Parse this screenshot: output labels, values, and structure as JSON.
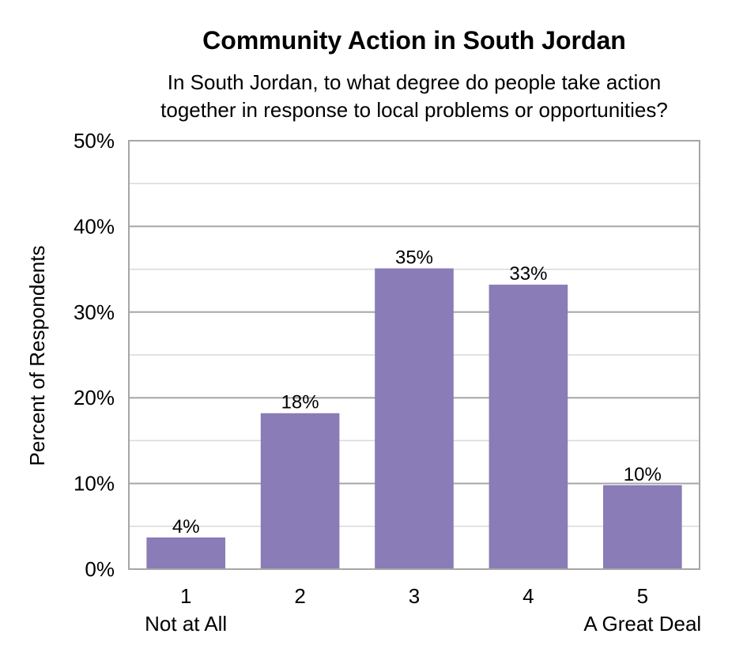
{
  "chart_data": {
    "type": "bar",
    "title": "Community Action in South Jordan",
    "subtitle_lines": [
      "In South Jordan, to what degree do people take action",
      "together in response to local problems or opportunities?"
    ],
    "ylabel": "Percent of Respondents",
    "xlabel": "",
    "categories": [
      "1",
      "2",
      "3",
      "4",
      "5"
    ],
    "category_sublabels": [
      "Not at All",
      "",
      "",
      "",
      "A Great Deal"
    ],
    "values": [
      3.7,
      18.2,
      35.1,
      33.2,
      9.8
    ],
    "data_labels": [
      "4%",
      "18%",
      "35%",
      "33%",
      "10%"
    ],
    "ylim": [
      0,
      50
    ],
    "yticks": [
      0,
      10,
      20,
      30,
      40,
      50
    ],
    "ytick_labels": [
      "0%",
      "10%",
      "20%",
      "30%",
      "40%",
      "50%"
    ],
    "grid": true,
    "legend": "none",
    "colors": {
      "bar": "#8a7cb6",
      "grid_major": "#a6a6a6",
      "grid_minor": "#d9d9d9",
      "frame": "#a6a6a6"
    }
  }
}
